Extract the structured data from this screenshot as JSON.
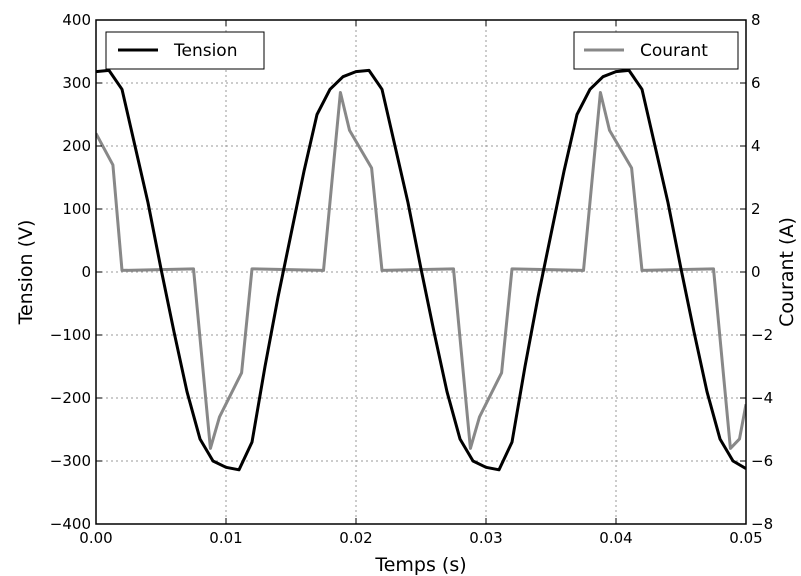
{
  "chart_data": {
    "type": "line",
    "xlabel": "Temps (s)",
    "ylabel_left": "Tension (V)",
    "ylabel_right": "Courant (A)",
    "xlim": [
      0.0,
      0.05
    ],
    "ylim_left": [
      -400,
      400
    ],
    "ylim_right": [
      -8,
      8
    ],
    "x_ticks": [
      "0.00",
      "0.01",
      "0.02",
      "0.03",
      "0.04",
      "0.05"
    ],
    "x_tick_values": [
      0.0,
      0.01,
      0.02,
      0.03,
      0.04,
      0.05
    ],
    "y_left_ticks": [
      "400",
      "300",
      "200",
      "100",
      "0",
      "−100",
      "−200",
      "−300",
      "−400"
    ],
    "y_left_tick_values": [
      400,
      300,
      200,
      100,
      0,
      -100,
      -200,
      -300,
      -400
    ],
    "y_right_ticks": [
      "8",
      "6",
      "4",
      "2",
      "0",
      "−2",
      "−4",
      "−6",
      "−8"
    ],
    "y_right_tick_values": [
      8,
      6,
      4,
      2,
      0,
      -2,
      -4,
      -6,
      -8
    ],
    "grid": true,
    "series": [
      {
        "name": "Tension",
        "axis": "left",
        "color": "#000000",
        "legend_position": "top-left",
        "x": [
          0.0,
          0.001,
          0.002,
          0.003,
          0.004,
          0.005,
          0.006,
          0.007,
          0.008,
          0.009,
          0.01,
          0.011,
          0.012,
          0.013,
          0.014,
          0.015,
          0.016,
          0.017,
          0.018,
          0.019,
          0.02,
          0.021,
          0.022,
          0.023,
          0.024,
          0.025,
          0.026,
          0.027,
          0.028,
          0.029,
          0.03,
          0.031,
          0.032,
          0.033,
          0.034,
          0.035,
          0.036,
          0.037,
          0.038,
          0.039,
          0.04,
          0.041,
          0.042,
          0.043,
          0.044,
          0.045,
          0.046,
          0.047,
          0.048,
          0.049,
          0.05
        ],
        "y": [
          318,
          320,
          290,
          200,
          110,
          5,
          -95,
          -190,
          -265,
          -300,
          -310,
          -314,
          -270,
          -150,
          -40,
          60,
          160,
          250,
          290,
          310,
          318,
          320,
          290,
          200,
          110,
          5,
          -95,
          -190,
          -265,
          -300,
          -310,
          -314,
          -270,
          -150,
          -40,
          60,
          160,
          250,
          290,
          310,
          318,
          320,
          290,
          200,
          110,
          5,
          -95,
          -190,
          -265,
          -300,
          -312
        ]
      },
      {
        "name": "Courant",
        "axis": "right",
        "color": "#888888",
        "legend_position": "top-right",
        "x": [
          0.0,
          0.0013,
          0.002,
          0.0075,
          0.0088,
          0.0095,
          0.0112,
          0.012,
          0.0175,
          0.0188,
          0.0195,
          0.0212,
          0.022,
          0.0275,
          0.0288,
          0.0295,
          0.0312,
          0.032,
          0.0375,
          0.0388,
          0.0395,
          0.0412,
          0.042,
          0.0475,
          0.0488,
          0.0495,
          0.05
        ],
        "y": [
          4.4,
          3.4,
          0.05,
          0.1,
          -5.6,
          -4.6,
          -3.2,
          0.1,
          0.05,
          5.7,
          4.5,
          3.3,
          0.05,
          0.1,
          -5.6,
          -4.6,
          -3.2,
          0.1,
          0.05,
          5.7,
          4.5,
          3.3,
          0.05,
          0.1,
          -5.6,
          -5.3,
          -4.2
        ]
      }
    ]
  }
}
